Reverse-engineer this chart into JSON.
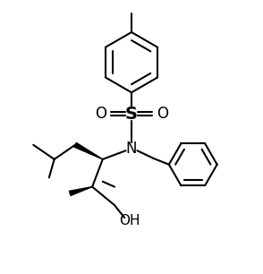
{
  "bg_color": "#ffffff",
  "line_color": "#000000",
  "line_width": 1.5,
  "figsize": [
    2.94,
    3.06
  ],
  "dpi": 100,
  "xlim": [
    0,
    10
  ],
  "ylim": [
    0,
    10.4
  ]
}
